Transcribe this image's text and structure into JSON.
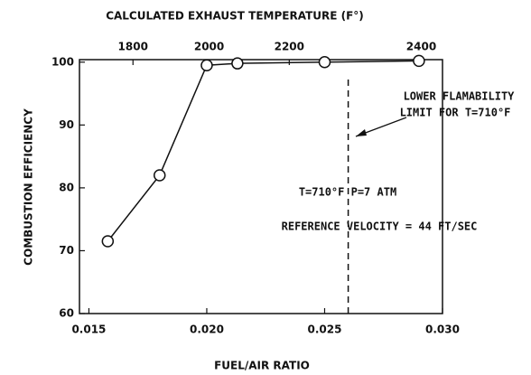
{
  "chart_data": {
    "type": "line",
    "title": "CALCULATED EXHAUST TEMPERATURE (F°)",
    "x_label": "FUEL/AIR RATIO",
    "y_label": "COMBUSTION EFFICIENCY",
    "x": [
      0.0158,
      0.018,
      0.02,
      0.0213,
      0.025,
      0.029
    ],
    "series": [
      {
        "name": "Combustion efficiency",
        "color": "#111111",
        "values": [
          71.5,
          82,
          99.5,
          99.8,
          100,
          100.2
        ]
      }
    ],
    "xlim": [
      0.0146,
      0.03
    ],
    "ylim": [
      60,
      100.4
    ],
    "xticks": [
      0.015,
      {
        "value": 0.02,
        "label": "0.020"
      },
      0.025,
      {
        "value": 0.03,
        "label": "0.030"
      }
    ],
    "yticks": [
      60,
      70,
      80,
      90,
      100
    ],
    "x2ticks": [
      {
        "value": 0.01687,
        "label": "1800"
      },
      {
        "value": 0.0201,
        "label": "2000"
      },
      {
        "value": 0.0235,
        "label": "2200"
      },
      {
        "value": 0.0291,
        "label": "2400"
      }
    ],
    "reference_line": {
      "x": 0.026,
      "style": "dashed"
    },
    "annotations": [
      "LOWER FLAMABILITY",
      "LIMIT FOR T=710°F",
      "T=710°F P=7 ATM",
      "REFERENCE VELOCITY = 44 FT/SEC"
    ],
    "grid": false
  }
}
